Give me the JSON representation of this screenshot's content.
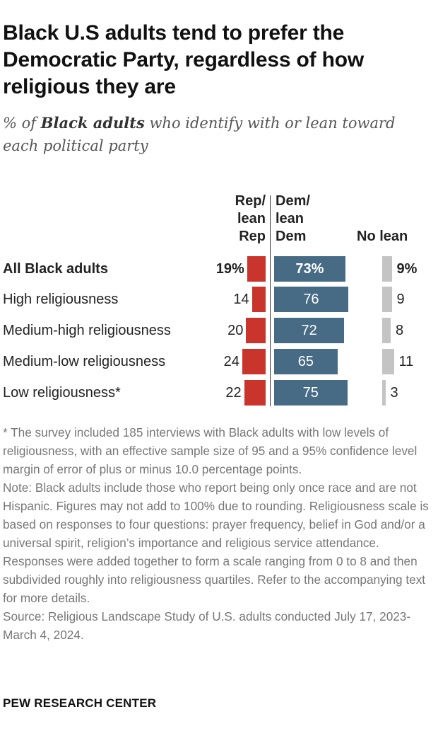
{
  "header": {
    "title": "Black U.S adults tend to prefer the Democratic Party, regardless of how religious they are",
    "subtitle_prefix": "% of ",
    "subtitle_bold": "Black adults",
    "subtitle_suffix": " who identify with or lean toward each political party"
  },
  "chart_data": {
    "type": "bar",
    "layout": "stacked-diverging",
    "columns": [
      "Rep/ lean Rep",
      "Dem/ lean Dem",
      "No lean"
    ],
    "categories": [
      "All Black adults",
      "High religiousness",
      "Medium-high religiousness",
      "Medium-low religiousness",
      "Low religiousness*"
    ],
    "series": [
      {
        "name": "Rep/ lean Rep",
        "values": [
          19,
          14,
          20,
          24,
          22
        ]
      },
      {
        "name": "Dem/ lean Dem",
        "values": [
          73,
          76,
          72,
          65,
          75
        ]
      },
      {
        "name": "No lean",
        "values": [
          9,
          9,
          8,
          11,
          3
        ]
      }
    ],
    "colors": {
      "rep": "#c9342c",
      "dem": "#476b85",
      "nolean": "#c4c4c4"
    },
    "first_row_bold": true,
    "first_row_suffix": "%"
  },
  "labels": {
    "rep_head": [
      "Rep/",
      "lean",
      "Rep"
    ],
    "dem_head": [
      "Dem/",
      "lean",
      "Dem"
    ],
    "nolean_head": "No lean"
  },
  "notes": {
    "footnote": "* The survey included 185 interviews with Black adults with low levels of religiousness, with an effective sample size of 95 and a 95% confidence level margin of error of plus or minus 10.0 percentage points.",
    "note": "Note: Black adults include those who report being only once race and are not Hispanic. Figures may not add to 100% due to rounding. Religiousness scale is based on responses to four questions: prayer frequency, belief in God and/or a universal spirit, religion’s importance and religious service attendance. Responses were added together to form a scale ranging from 0 to 8 and then subdivided roughly into religiousness quartiles. Refer to the accompanying text for more details.",
    "source": "Source: Religious Landscape Study of U.S. adults conducted July 17, 2023-March 4, 2024."
  },
  "footer": {
    "brand": "PEW RESEARCH CENTER"
  }
}
